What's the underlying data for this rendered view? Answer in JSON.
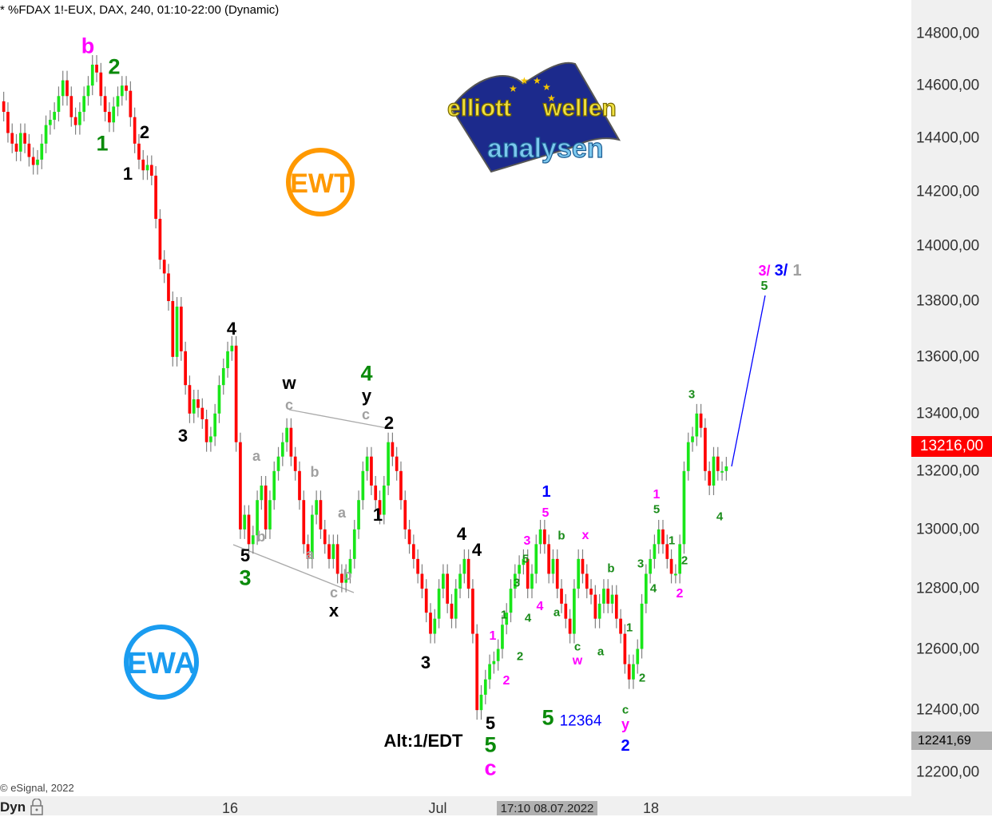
{
  "header": {
    "title": "* %FDAX 1!-EUX, DAX, 240, 01:10-22:00 (Dynamic)"
  },
  "footer": {
    "copyright": "© eSignal, 2022",
    "mode": "Dyn",
    "cursor_time": "17:10 08.07.2022"
  },
  "logos": {
    "ewt": "EWT",
    "ewa": "EWA",
    "brand": "elliott wellen analysen"
  },
  "colors": {
    "up": "#19e619",
    "down": "#ff0000",
    "wick": "#808080",
    "projection": "#0000ff",
    "channel": "#aaaaaa",
    "ewt": "#ff9900",
    "ewa": "#1a9cf0"
  },
  "chart_data": {
    "type": "candlestick",
    "title": "* %FDAX 1!-EUX, DAX, 240, 01:10-22:00 (Dynamic)",
    "y_scale": "log",
    "ylim": [
      12200,
      14800
    ],
    "y_ticks": [
      "14800,00",
      "14600,00",
      "14400,00",
      "14200,00",
      "14000,00",
      "13800,00",
      "13600,00",
      "13400,00",
      "13200,00",
      "13000,00",
      "12800,00",
      "12600,00",
      "12400,00",
      "12200,00"
    ],
    "x_ticks": [
      "16",
      "Jul",
      "18"
    ],
    "last_price": "13216,00",
    "low_marker": "12241,69",
    "closes": [
      14500,
      14420,
      14380,
      14350,
      14420,
      14380,
      14330,
      14300,
      14320,
      14380,
      14450,
      14470,
      14500,
      14560,
      14620,
      14560,
      14480,
      14450,
      14500,
      14560,
      14600,
      14680,
      14650,
      14560,
      14500,
      14460,
      14520,
      14560,
      14600,
      14580,
      14480,
      14380,
      14320,
      14280,
      14300,
      14260,
      14100,
      13950,
      13900,
      13800,
      13600,
      13780,
      13620,
      13500,
      13400,
      13450,
      13420,
      13380,
      13300,
      13320,
      13400,
      13500,
      13560,
      13620,
      13640,
      13300,
      13000,
      13050,
      12950,
      12980,
      13100,
      13150,
      13000,
      13100,
      13200,
      13250,
      13300,
      13350,
      13250,
      13200,
      13100,
      12950,
      12900,
      13050,
      13100,
      13000,
      12950,
      12900,
      12950,
      12850,
      12820,
      12850,
      12900,
      13000,
      13100,
      13200,
      13250,
      13150,
      13100,
      13050,
      13150,
      13300,
      13250,
      13200,
      13100,
      13000,
      12950,
      12900,
      12850,
      12800,
      12720,
      12650,
      12700,
      12800,
      12850,
      12750,
      12700,
      12800,
      12850,
      12900,
      12800,
      12650,
      12400,
      12450,
      12500,
      12550,
      12560,
      12600,
      12680,
      12720,
      12800,
      12850,
      12880,
      12900,
      12800,
      12850,
      12950,
      13000,
      12950,
      12850,
      12900,
      12800,
      12750,
      12700,
      12650,
      12800,
      12900,
      12850,
      12800,
      12780,
      12700,
      12750,
      12800,
      12750,
      12780,
      12700,
      12650,
      12550,
      12500,
      12550,
      12600,
      12750,
      12850,
      12900,
      12950,
      13000,
      12950,
      12900,
      12850,
      12850,
      12950,
      13200,
      13300,
      13320,
      13400,
      13350,
      13200,
      13150,
      13250,
      13200,
      13200,
      13216
    ],
    "projection": {
      "from": 13216,
      "to": 13820,
      "label": "5"
    },
    "wave_labels": [
      {
        "text": "b",
        "color": "#ff00ff"
      },
      {
        "text": "2",
        "color": "#0a8a0a"
      },
      {
        "text": "1",
        "color": "#0a8a0a"
      },
      {
        "text": "2",
        "color": "#000000"
      },
      {
        "text": "1",
        "color": "#000000"
      },
      {
        "text": "4",
        "color": "#000000"
      },
      {
        "text": "3",
        "color": "#000000"
      },
      {
        "text": "w",
        "color": "#000000"
      },
      {
        "text": "c",
        "color": "#a0a0a0"
      },
      {
        "text": "a",
        "color": "#a0a0a0"
      },
      {
        "text": "b",
        "color": "#a0a0a0"
      },
      {
        "text": "b",
        "color": "#a0a0a0"
      },
      {
        "text": "5",
        "color": "#000000"
      },
      {
        "text": "3",
        "color": "#0a8a0a"
      },
      {
        "text": "a",
        "color": "#a0a0a0"
      },
      {
        "text": "a",
        "color": "#a0a0a0"
      },
      {
        "text": "b",
        "color": "#a0a0a0"
      },
      {
        "text": "c",
        "color": "#a0a0a0"
      },
      {
        "text": "x",
        "color": "#000000"
      },
      {
        "text": "4",
        "color": "#0a8a0a"
      },
      {
        "text": "y",
        "color": "#000000"
      },
      {
        "text": "c",
        "color": "#a0a0a0"
      },
      {
        "text": "2",
        "color": "#000000"
      },
      {
        "text": "1",
        "color": "#000000"
      },
      {
        "text": "4",
        "color": "#000000"
      },
      {
        "text": "4",
        "color": "#000000"
      },
      {
        "text": "3",
        "color": "#000000"
      },
      {
        "text": "1",
        "color": "#ff00ff"
      },
      {
        "text": "2",
        "color": "#ff00ff"
      },
      {
        "text": "5",
        "color": "#000000"
      },
      {
        "text": "5",
        "color": "#0a8a0a"
      },
      {
        "text": "c",
        "color": "#ff00ff"
      },
      {
        "text": "Alt:1/EDT",
        "color": "#000000"
      },
      {
        "text": "1",
        "color": "#1a8c1a"
      },
      {
        "text": "2",
        "color": "#1a8c1a"
      },
      {
        "text": "4",
        "color": "#1a8c1a"
      },
      {
        "text": "3",
        "color": "#1a8c1a"
      },
      {
        "text": "5",
        "color": "#1a8c1a"
      },
      {
        "text": "3",
        "color": "#ff00ff"
      },
      {
        "text": "4",
        "color": "#ff00ff"
      },
      {
        "text": "5",
        "color": "#ff00ff"
      },
      {
        "text": "1",
        "color": "#0000ff"
      },
      {
        "text": "b",
        "color": "#1a8c1a"
      },
      {
        "text": "a",
        "color": "#1a8c1a"
      },
      {
        "text": "x",
        "color": "#ff00ff"
      },
      {
        "text": "c",
        "color": "#1a8c1a"
      },
      {
        "text": "w",
        "color": "#ff00ff"
      },
      {
        "text": "a",
        "color": "#1a8c1a"
      },
      {
        "text": "b",
        "color": "#1a8c1a"
      },
      {
        "text": "5",
        "color": "#0a8a0a"
      },
      {
        "text": "12364",
        "color": "#0000ff"
      },
      {
        "text": "1",
        "color": "#1a8c1a"
      },
      {
        "text": "2",
        "color": "#1a8c1a"
      },
      {
        "text": "c",
        "color": "#1a8c1a"
      },
      {
        "text": "y",
        "color": "#ff00ff"
      },
      {
        "text": "2",
        "color": "#0000ff"
      },
      {
        "text": "3",
        "color": "#1a8c1a"
      },
      {
        "text": "4",
        "color": "#1a8c1a"
      },
      {
        "text": "5",
        "color": "#1a8c1a"
      },
      {
        "text": "1",
        "color": "#ff00ff"
      },
      {
        "text": "1",
        "color": "#1a8c1a"
      },
      {
        "text": "2",
        "color": "#1a8c1a"
      },
      {
        "text": "2",
        "color": "#ff00ff"
      },
      {
        "text": "3",
        "color": "#1a8c1a"
      },
      {
        "text": "4",
        "color": "#1a8c1a"
      },
      {
        "text": "3/",
        "color": "#ff00ff"
      },
      {
        "text": "3/",
        "color": "#0000ff"
      },
      {
        "text": "1",
        "color": "#a0a0a0"
      },
      {
        "text": "5",
        "color": "#1a8c1a"
      }
    ]
  }
}
